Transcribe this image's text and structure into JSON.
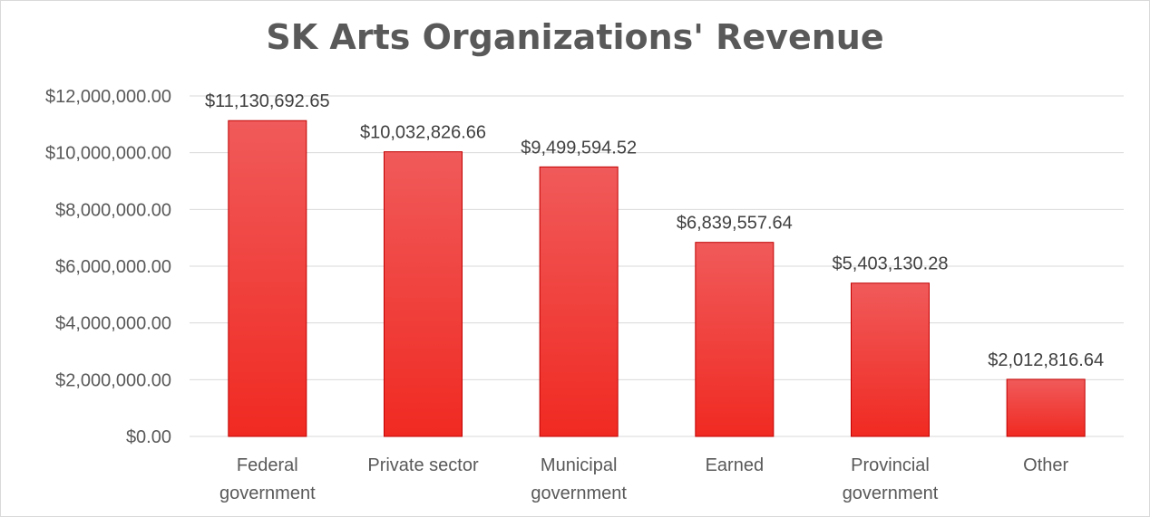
{
  "chart_data": {
    "type": "bar",
    "title": "SK Arts Organizations' Revenue",
    "categories": [
      [
        "Federal",
        "government"
      ],
      [
        "Private sector"
      ],
      [
        "Municipal",
        "government"
      ],
      [
        "Earned"
      ],
      [
        "Provincial",
        "government"
      ],
      [
        "Other"
      ]
    ],
    "values": [
      11130692.65,
      10032826.66,
      9499594.52,
      6839557.64,
      5403130.28,
      2012816.64
    ],
    "data_labels": [
      "$11,130,692.65",
      "$10,032,826.66",
      "$9,499,594.52",
      "$6,839,557.64",
      "$5,403,130.28",
      "$2,012,816.64"
    ],
    "y_ticks": [
      0,
      2000000,
      4000000,
      6000000,
      8000000,
      10000000,
      12000000
    ],
    "y_tick_labels": [
      "$0.00",
      "$2,000,000.00",
      "$4,000,000.00",
      "$6,000,000.00",
      "$8,000,000.00",
      "$10,000,000.00",
      "$12,000,000.00"
    ],
    "ylim": [
      0,
      12000000
    ],
    "grid": true,
    "legend": "none",
    "colors": {
      "bar_top": "#f05a5a",
      "bar_bottom": "#f02a22",
      "bar_edge": "#c00000",
      "grid": "#d9d9d9",
      "axis": "#d9d9d9"
    }
  }
}
